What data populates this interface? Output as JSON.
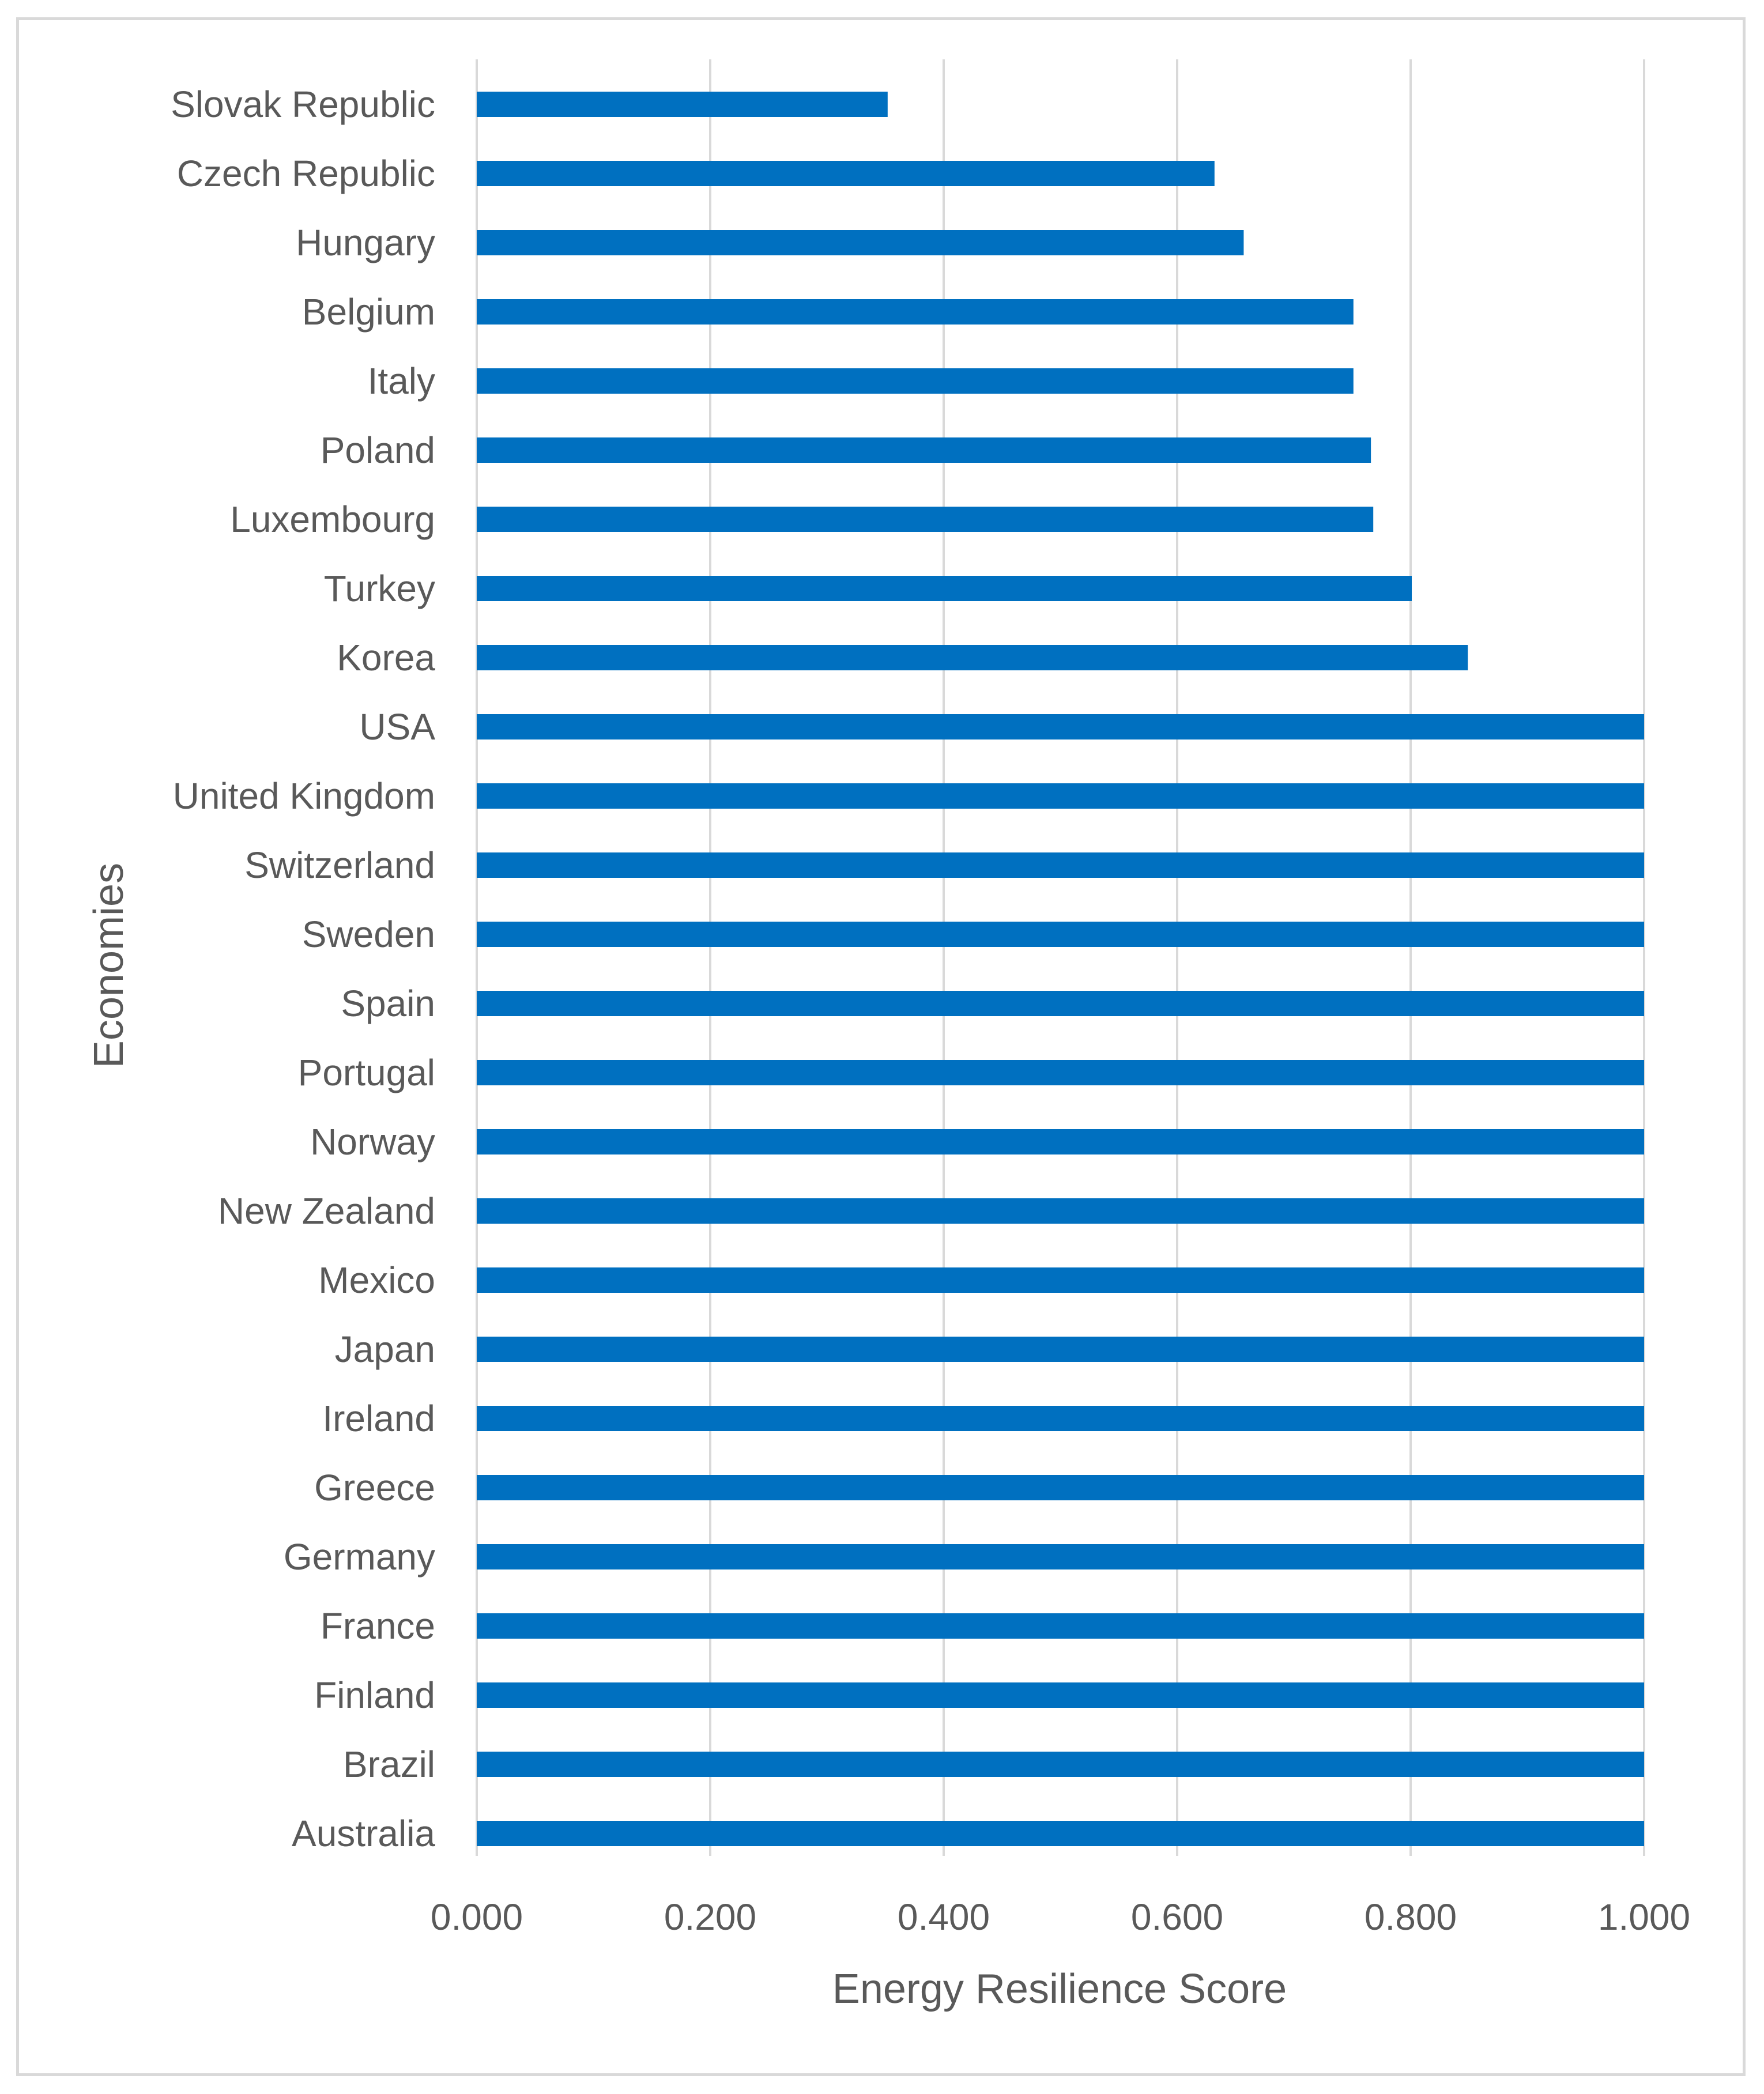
{
  "chart_data": {
    "type": "bar",
    "orientation": "horizontal",
    "title": "",
    "xlabel": "Energy Resilience Score",
    "ylabel": "Economies",
    "xlim": [
      0,
      1
    ],
    "x_ticks": [
      "0.000",
      "0.200",
      "0.400",
      "0.600",
      "0.800",
      "1.000"
    ],
    "grid": "vertical",
    "legend": "none",
    "bar_color": "#0070C0",
    "grid_color": "#d9d9d9",
    "categories": [
      "Slovak Republic",
      "Czech Republic",
      "Hungary",
      "Belgium",
      "Italy",
      "Poland",
      "Luxembourg",
      "Turkey",
      "Korea",
      "USA",
      "United Kingdom",
      "Switzerland",
      "Sweden",
      "Spain",
      "Portugal",
      "Norway",
      "New Zealand",
      "Mexico",
      "Japan",
      "Ireland",
      "Greece",
      "Germany",
      "France",
      "Finland",
      "Brazil",
      "Australia"
    ],
    "values": [
      0.352,
      0.632,
      0.657,
      0.751,
      0.751,
      0.766,
      0.768,
      0.801,
      0.849,
      1.0,
      1.0,
      1.0,
      1.0,
      1.0,
      1.0,
      1.0,
      1.0,
      1.0,
      1.0,
      1.0,
      1.0,
      1.0,
      1.0,
      1.0,
      1.0,
      1.0
    ]
  }
}
